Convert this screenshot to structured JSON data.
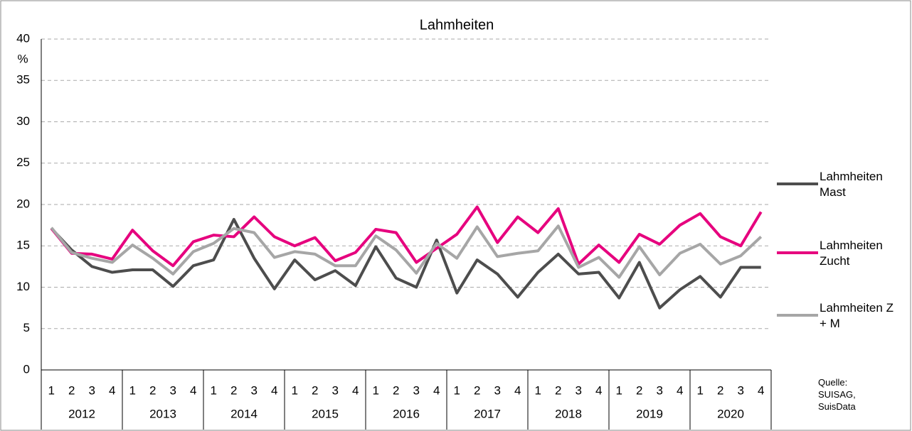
{
  "chart_data": {
    "type": "line",
    "title": "Lahmheiten",
    "y_unit": "%",
    "categories": [
      "1",
      "2",
      "3",
      "4",
      "1",
      "2",
      "3",
      "4",
      "1",
      "2",
      "3",
      "4",
      "1",
      "2",
      "3",
      "4",
      "1",
      "2",
      "3",
      "4",
      "1",
      "2",
      "3",
      "4",
      "1",
      "2",
      "3",
      "4",
      "1",
      "2",
      "3",
      "4",
      "1",
      "2",
      "3",
      "4"
    ],
    "category_groups": [
      "2012",
      "2013",
      "2014",
      "2015",
      "2016",
      "2017",
      "2018",
      "2019",
      "2020"
    ],
    "series": [
      {
        "name": "Lahmheiten Mast",
        "color": "#4d4d4d",
        "values": [
          17.1,
          14.5,
          12.5,
          11.8,
          12.1,
          12.1,
          10.1,
          12.6,
          13.3,
          18.2,
          13.5,
          9.8,
          13.3,
          10.9,
          12.0,
          10.2,
          14.9,
          11.1,
          10.0,
          15.7,
          9.3,
          13.3,
          11.6,
          8.8,
          11.8,
          14.0,
          11.6,
          11.8,
          8.7,
          13.0,
          7.5,
          9.7,
          11.3,
          8.8,
          12.4,
          12.4
        ]
      },
      {
        "name": "Lahmheiten Zucht",
        "color": "#e6007e",
        "values": [
          17.1,
          14.1,
          14.0,
          13.4,
          16.9,
          14.4,
          12.6,
          15.5,
          16.3,
          16.1,
          18.5,
          16.1,
          15.0,
          16.0,
          13.2,
          14.2,
          17.0,
          16.6,
          13.0,
          14.7,
          16.4,
          19.7,
          15.4,
          18.5,
          16.6,
          19.5,
          12.8,
          15.1,
          13.0,
          16.4,
          15.2,
          17.5,
          18.9,
          16.1,
          15.0,
          19.1
        ]
      },
      {
        "name": "Lahmheiten Z + M",
        "color": "#a6a6a6",
        "values": [
          17.2,
          14.2,
          13.5,
          13.0,
          15.1,
          13.5,
          11.6,
          14.3,
          15.3,
          17.1,
          16.6,
          13.6,
          14.3,
          14.0,
          12.6,
          12.6,
          16.2,
          14.5,
          11.7,
          15.3,
          13.5,
          17.3,
          13.7,
          14.1,
          14.4,
          17.4,
          12.4,
          13.6,
          11.2,
          14.9,
          11.5,
          14.1,
          15.2,
          12.8,
          13.8,
          16.1
        ]
      }
    ],
    "ylim": [
      0,
      40
    ],
    "yticks": [
      0,
      5,
      10,
      15,
      20,
      25,
      30,
      35,
      40
    ],
    "grid": true,
    "legend": "right",
    "source": "Quelle: SUISAG, SuisData"
  }
}
